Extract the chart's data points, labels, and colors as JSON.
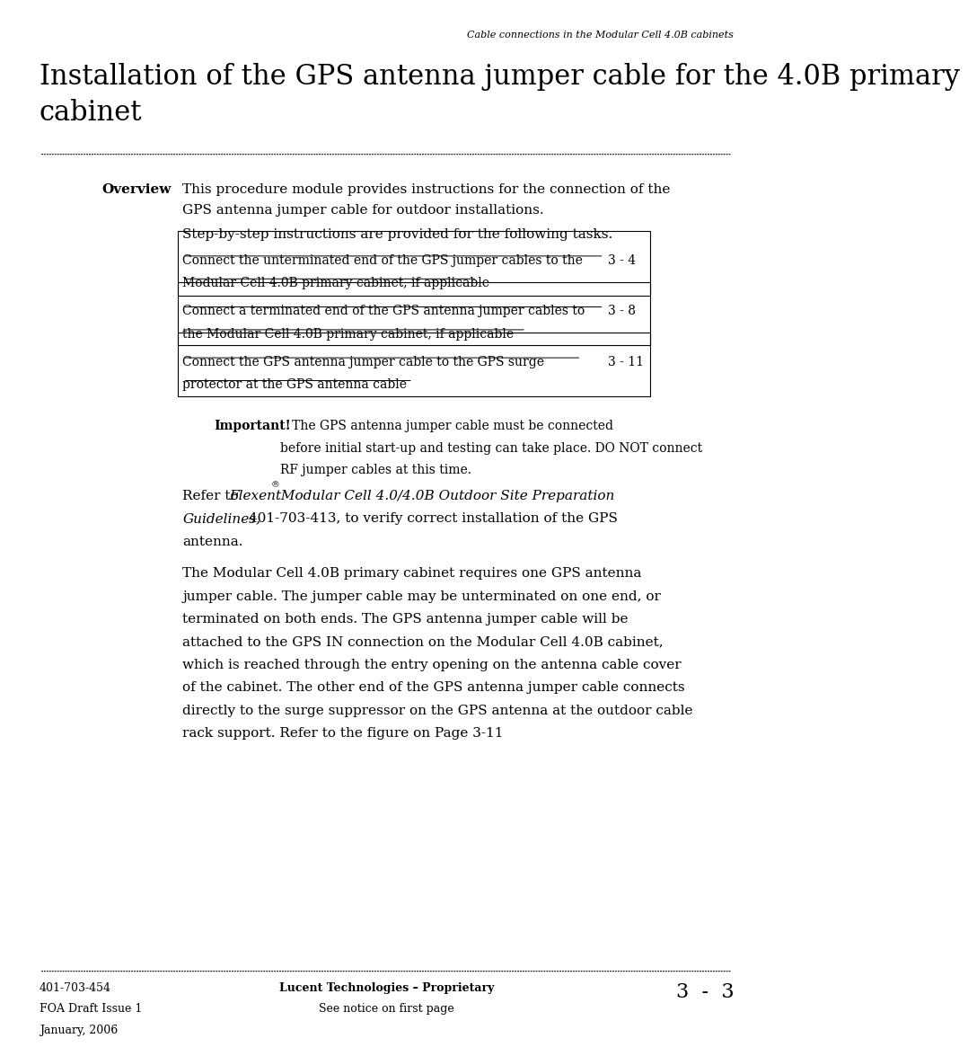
{
  "bg_color": "#ffffff",
  "header_text": "Cable connections in the Modular Cell 4.0B cabinets",
  "title_line1": "Installation of the GPS antenna jumper cable for the 4.0B primary",
  "title_line2": "cabinet",
  "overview_label": "Overview",
  "overview_text1": "This procedure module provides instructions for the connection of the",
  "overview_text2": "GPS antenna jumper cable for outdoor installations.",
  "overview_text3": "Step-by-step instructions are provided for the following tasks.",
  "box1_line1": "Connect the unterminated end of the GPS jumper cables to the",
  "box1_page": "3 - 4",
  "box1_line2": "Modular Cell 4.0B primary cabinet, if applicable",
  "box2_line1": "Connect a terminated end of the GPS antenna jumper cables to",
  "box2_page": "3 - 8",
  "box2_line2": "the Modular Cell 4.0B primary cabinet, if applicable",
  "box3_line1": "Connect the GPS antenna jumper cable to the GPS surge",
  "box3_page": "3 - 11",
  "box3_line2": "protector at the GPS antenna cable",
  "important_label": "Important!",
  "important_text1": "   The GPS antenna jumper cable must be connected",
  "important_text2": "before initial start-up and testing can take place. DO NOT connect",
  "important_text3": "RF jumper cables at this time.",
  "refer_prefix": "Refer to ",
  "refer_italic1": "Flexent",
  "refer_superscript": "®",
  "refer_italic2": " Modular Cell 4.0/4.0B Outdoor Site Preparation",
  "refer_italic3": "Guidelines,",
  "refer_normal": " 401-703-413, to verify correct installation of the GPS",
  "refer_normal2": "antenna.",
  "body_lines": [
    "The Modular Cell 4.0B primary cabinet requires one GPS antenna",
    "jumper cable. The jumper cable may be unterminated on one end, or",
    "terminated on both ends. The GPS antenna jumper cable will be",
    "attached to the GPS IN connection on the Modular Cell 4.0B cabinet,",
    "which is reached through the entry opening on the antenna cable cover",
    "of the cabinet. The other end of the GPS antenna jumper cable connects",
    "directly to the surge suppressor on the GPS antenna at the outdoor cable",
    "rack support. Refer to the figure on Page 3-11"
  ],
  "footer_left1": "401-703-454",
  "footer_left2": "FOA Draft Issue 1",
  "footer_left3": "January, 2006",
  "footer_center1": "Lucent Technologies – Proprietary",
  "footer_center2": "See notice on first page",
  "footer_right": "3  -  3",
  "font_family": "DejaVu Serif"
}
